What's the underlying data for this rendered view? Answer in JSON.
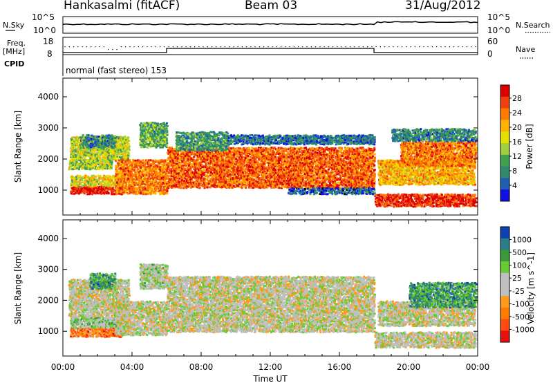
{
  "header": {
    "station": "Hankasalmi (fitACF)",
    "beam": "Beam 03",
    "date": "31/Aug/2012"
  },
  "top_panels": {
    "nsky_label": "N.Sky",
    "nsearch_label": "N.Search",
    "noise_ticks": [
      "10^5",
      "10^0"
    ],
    "freq_label_1": "Freq.",
    "freq_label_2": "[MHz]",
    "freq_ticks": [
      "18",
      "8"
    ],
    "nave_label": "Nave",
    "nave_ticks": [
      "60",
      "0"
    ],
    "cpid_label": "CPID",
    "cpid_text": "normal (fast stereo) 153"
  },
  "chart_data": [
    {
      "type": "heatmap",
      "title": "",
      "xlabel": "Time UT",
      "ylabel": "Slant Range [km]",
      "xlim": [
        "00:00",
        "24:00"
      ],
      "ylim": [
        200,
        4600
      ],
      "x_ticks": [
        "00:00",
        "04:00",
        "08:00",
        "12:00",
        "16:00",
        "20:00",
        "00:00"
      ],
      "y_ticks": [
        "4000",
        "3000",
        "2000",
        "1000"
      ],
      "colorbar": {
        "label": "Power [dB]",
        "ticks": [
          "28",
          "24",
          "20",
          "16",
          "12",
          "8",
          "4"
        ],
        "colors": [
          "#dc0000",
          "#f04010",
          "#ff7a00",
          "#ffb000",
          "#e6e000",
          "#a0d040",
          "#40a050",
          "#2f8a70",
          "#1f5fb0",
          "#1010e0"
        ]
      },
      "bands": [
        {
          "x": [
            0.4,
            3.4
          ],
          "y": [
            900,
            1150
          ],
          "level": 0.95
        },
        {
          "x": [
            0.4,
            3.4
          ],
          "y": [
            1150,
            1500
          ],
          "level": 0.55
        },
        {
          "x": [
            0.3,
            2.8
          ],
          "y": [
            1700,
            2000
          ],
          "level": 0.45
        },
        {
          "x": [
            0.4,
            3.8
          ],
          "y": [
            2000,
            2750
          ],
          "level": 0.5
        },
        {
          "x": [
            1.0,
            3.0
          ],
          "y": [
            2400,
            2800
          ],
          "level": 0.25
        },
        {
          "x": [
            3.0,
            6.0
          ],
          "y": [
            900,
            2000
          ],
          "level": 0.75
        },
        {
          "x": [
            4.4,
            6.0
          ],
          "y": [
            2400,
            3200
          ],
          "level": 0.35
        },
        {
          "x": [
            6.0,
            18.0
          ],
          "y": [
            1100,
            2400
          ],
          "level": 0.8
        },
        {
          "x": [
            6.5,
            9.5
          ],
          "y": [
            2300,
            2900
          ],
          "level": 0.3
        },
        {
          "x": [
            9.5,
            18.0
          ],
          "y": [
            2500,
            2800
          ],
          "level": 0.2
        },
        {
          "x": [
            13.0,
            18.0
          ],
          "y": [
            900,
            1100
          ],
          "level": 0.15
        },
        {
          "x": [
            18.0,
            24.0
          ],
          "y": [
            500,
            900
          ],
          "level": 0.9
        },
        {
          "x": [
            18.2,
            23.8
          ],
          "y": [
            1200,
            2000
          ],
          "level": 0.65
        },
        {
          "x": [
            19.5,
            24.0
          ],
          "y": [
            1800,
            2600
          ],
          "level": 0.75
        },
        {
          "x": [
            19.0,
            24.0
          ],
          "y": [
            2600,
            3000
          ],
          "level": 0.25
        }
      ]
    },
    {
      "type": "heatmap",
      "title": "",
      "xlabel": "Time UT",
      "ylabel": "Slant Range [km]",
      "xlim": [
        "00:00",
        "24:00"
      ],
      "ylim": [
        200,
        4600
      ],
      "x_ticks": [
        "00:00",
        "04:00",
        "08:00",
        "12:00",
        "16:00",
        "20:00",
        "00:00"
      ],
      "y_ticks": [
        "4000",
        "3000",
        "2000",
        "1000"
      ],
      "colorbar": {
        "label": "Velocity [m s^-1]",
        "ticks": [
          "1000",
          "500",
          "100",
          "25",
          "-25",
          "-100",
          "-500",
          "-1000"
        ],
        "colors": [
          "#1040b0",
          "#2a7e8a",
          "#3a9a3a",
          "#66cc33",
          "#bfbfbf",
          "#bfbfbf",
          "#ff9a1a",
          "#ff7a00",
          "#ff4a10",
          "#e81010"
        ]
      },
      "bands": [
        {
          "x": [
            0.4,
            3.4
          ],
          "y": [
            850,
            1150
          ],
          "level": 0.25
        },
        {
          "x": [
            0.4,
            3.4
          ],
          "y": [
            1150,
            1500
          ],
          "level": 0.6
        },
        {
          "x": [
            0.3,
            3.8
          ],
          "y": [
            1500,
            2700
          ],
          "level": 0.5
        },
        {
          "x": [
            1.5,
            3.0
          ],
          "y": [
            2400,
            2900
          ],
          "level": 0.75
        },
        {
          "x": [
            3.0,
            6.0
          ],
          "y": [
            900,
            2000
          ],
          "level": 0.5
        },
        {
          "x": [
            4.4,
            6.0
          ],
          "y": [
            2400,
            3200
          ],
          "level": 0.55
        },
        {
          "x": [
            6.0,
            18.0
          ],
          "y": [
            1000,
            2800
          ],
          "level": 0.5
        },
        {
          "x": [
            18.0,
            24.0
          ],
          "y": [
            500,
            1000
          ],
          "level": 0.5
        },
        {
          "x": [
            18.2,
            23.8
          ],
          "y": [
            1200,
            2000
          ],
          "level": 0.5
        },
        {
          "x": [
            20.0,
            24.0
          ],
          "y": [
            1800,
            2600
          ],
          "level": 0.75
        }
      ]
    }
  ]
}
